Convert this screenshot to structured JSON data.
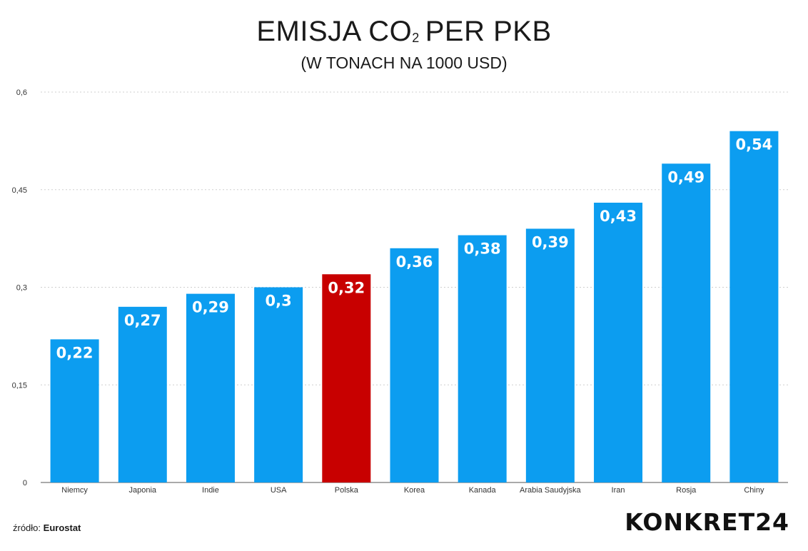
{
  "header": {
    "title_main": "EMISJA CO",
    "title_sub": "2",
    "title_rest": "PER PKB",
    "subtitle": "(W TONACH NA 1000 USD)"
  },
  "footer": {
    "source_prefix": "źródło:",
    "source_name": "Eurostat",
    "logo": "KONKRET24"
  },
  "colors": {
    "bar": "#0c9df0",
    "highlight": "#c80000"
  },
  "chart_data": {
    "type": "bar",
    "title": "EMISJA CO2 PER PKB",
    "subtitle": "(W TONACH NA 1000 USD)",
    "xlabel": "",
    "ylabel": "",
    "ylim": [
      0,
      0.6
    ],
    "yticks": [
      0,
      0.15,
      0.3,
      0.45,
      0.6
    ],
    "ytick_labels": [
      "0",
      "0,15",
      "0,3",
      "0,45",
      "0,6"
    ],
    "grid": true,
    "categories": [
      "Niemcy",
      "Japonia",
      "Indie",
      "USA",
      "Polska",
      "Korea",
      "Kanada",
      "Arabia Saudyjska",
      "Iran",
      "Rosja",
      "Chiny"
    ],
    "values": [
      0.22,
      0.27,
      0.29,
      0.3,
      0.32,
      0.36,
      0.38,
      0.39,
      0.43,
      0.49,
      0.54
    ],
    "value_labels": [
      "0,22",
      "0,27",
      "0,29",
      "0,3",
      "0,32",
      "0,36",
      "0,38",
      "0,39",
      "0,43",
      "0,49",
      "0,54"
    ],
    "highlight_category": "Polska"
  }
}
